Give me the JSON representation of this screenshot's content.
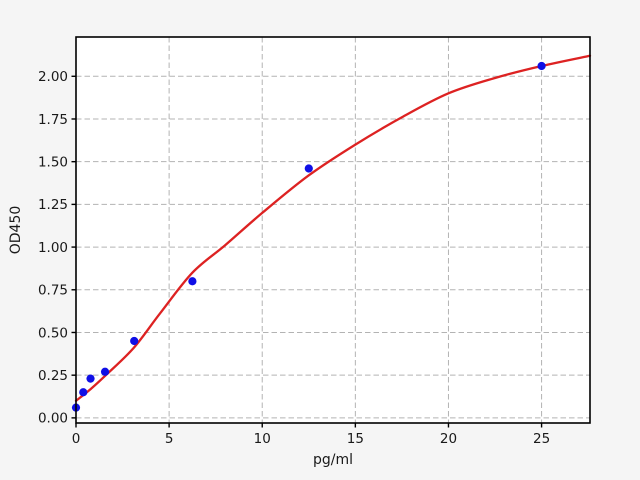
{
  "figure": {
    "background_color": "#f5f5f5",
    "plot_background_color": "#ffffff",
    "grid_color": "#b3b3b3",
    "spine_color": "#000000",
    "text_color": "#1a1a1a"
  },
  "chart_data": {
    "type": "scatter",
    "title": "",
    "xlabel": "pg/ml",
    "ylabel": "OD450",
    "xlim": [
      0,
      27.6
    ],
    "ylim": [
      -0.03,
      2.23
    ],
    "x_ticks": {
      "values": [
        0,
        5,
        10,
        15,
        20,
        25
      ],
      "labels": [
        "0",
        "5",
        "10",
        "15",
        "20",
        "25"
      ]
    },
    "y_ticks": {
      "values": [
        0,
        0.25,
        0.5,
        0.75,
        1.0,
        1.25,
        1.5,
        1.75,
        2.0
      ],
      "labels": [
        "0.00",
        "0.25",
        "0.50",
        "0.75",
        "1.00",
        "1.25",
        "1.50",
        "1.75",
        "2.00"
      ]
    },
    "grid": {
      "on": true,
      "style": "dashed"
    },
    "legend": {
      "visible": false
    },
    "series": [
      {
        "name": "standard-points",
        "type": "scatter",
        "marker": "circle",
        "color": "#0f0fe6",
        "marker_radius": 4.1,
        "x": [
          0,
          0.39,
          0.78,
          1.56,
          3.125,
          6.25,
          12.5,
          25
        ],
        "y": [
          0.06,
          0.15,
          0.23,
          0.27,
          0.45,
          0.8,
          1.46,
          2.06
        ]
      },
      {
        "name": "fit-curve",
        "type": "line",
        "color": "#dd2222",
        "line_width": 2.3,
        "points": [
          [
            0,
            0.1
          ],
          [
            0.8,
            0.17
          ],
          [
            1.6,
            0.25
          ],
          [
            3.1,
            0.41
          ],
          [
            4.5,
            0.61
          ],
          [
            6.25,
            0.85
          ],
          [
            8,
            1.01
          ],
          [
            10,
            1.2
          ],
          [
            12.5,
            1.42
          ],
          [
            15,
            1.6
          ],
          [
            17.5,
            1.76
          ],
          [
            20,
            1.9
          ],
          [
            22.5,
            1.99
          ],
          [
            25,
            2.06
          ],
          [
            27.6,
            2.12
          ]
        ]
      }
    ]
  }
}
